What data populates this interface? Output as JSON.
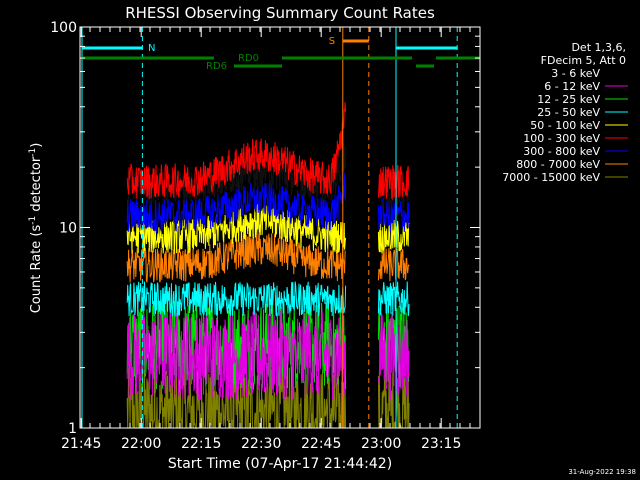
{
  "chart_data": {
    "type": "line",
    "title": "RHESSI Observing Summary Count Rates",
    "xlabel": "Start Time (07-Apr-17 21:44:42)",
    "ylabel_prefix": "Count Rate (s",
    "ylabel_sup": "-1",
    "ylabel_mid": " detector",
    "ylabel_sup2": "-1",
    "ylabel_suffix": ")",
    "yscale": "log",
    "ylim": [
      1,
      100
    ],
    "xlim_minutes": [
      0,
      100
    ],
    "x_ticks": [
      {
        "label": "21:45",
        "minute": 0.3
      },
      {
        "label": "22:00",
        "minute": 15.3
      },
      {
        "label": "22:15",
        "minute": 30.3
      },
      {
        "label": "22:30",
        "minute": 45.3
      },
      {
        "label": "22:45",
        "minute": 60.3
      },
      {
        "label": "23:00",
        "minute": 75.3
      },
      {
        "label": "23:15",
        "minute": 90.3
      }
    ],
    "y_ticks": [
      {
        "label": "1",
        "value": 1
      },
      {
        "label": "10",
        "value": 10
      },
      {
        "label": "100",
        "value": 100
      }
    ],
    "legend_header": [
      "Det 1,3,6,",
      "FDecim 5, Att 0"
    ],
    "series": [
      {
        "name": "3 - 6 keV",
        "color": "#000000",
        "segments": [
          [
            {
              "x0": 11.5,
              "x1": 66.5,
              "base": 16,
              "bump": 2.5,
              "peak": 40
            }
          ],
          [
            {
              "x0": 74.5,
              "x1": 82.5,
              "base": 15
            }
          ]
        ]
      },
      {
        "name": "6 - 12 keV",
        "color": "#e000e0",
        "level": 2.3
      },
      {
        "name": "12 - 25 keV",
        "color": "#00e000",
        "level": 2.6
      },
      {
        "name": "25 - 50 keV",
        "color": "#00ffff",
        "level": 4.4
      },
      {
        "name": "50 - 100 keV",
        "color": "#ffff00",
        "level": 9.0
      },
      {
        "name": "100 - 300 keV",
        "color": "#ff0000",
        "level": 17.0
      },
      {
        "name": "300 - 800 keV",
        "color": "#0000ff",
        "level": 11.5
      },
      {
        "name": "800 - 7000 keV",
        "color": "#ff8000",
        "level": 6.5
      },
      {
        "name": "7000 - 15000 keV",
        "color": "#808000",
        "level": 1.2
      }
    ],
    "annotations": {
      "night_label": "N",
      "saa_label": "S",
      "rd0_label": "RD0",
      "rd6_label": "RD6"
    },
    "timestamp": "31-Aug-2022 19:38"
  }
}
